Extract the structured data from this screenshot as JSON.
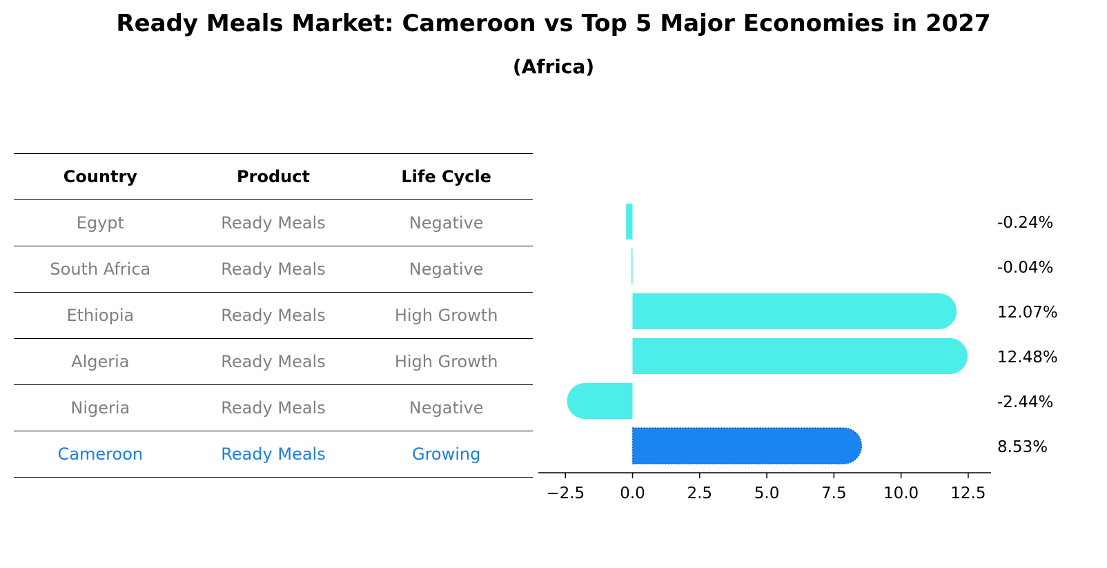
{
  "title": "Ready Meals Market: Cameroon vs Top 5 Major Economies in 2027",
  "subtitle": "(Africa)",
  "table": {
    "headers": [
      "Country",
      "Product",
      "Life Cycle"
    ],
    "rows": [
      {
        "country": "Egypt",
        "product": "Ready Meals",
        "life_cycle": "Negative"
      },
      {
        "country": "South Africa",
        "product": "Ready Meals",
        "life_cycle": "Negative"
      },
      {
        "country": "Ethiopia",
        "product": "Ready Meals",
        "life_cycle": "High Growth"
      },
      {
        "country": "Algeria",
        "product": "Ready Meals",
        "life_cycle": "High Growth"
      },
      {
        "country": "Nigeria",
        "product": "Ready Meals",
        "life_cycle": "Negative"
      },
      {
        "country": "Cameroon",
        "product": "Ready Meals",
        "life_cycle": "Growing"
      }
    ]
  },
  "colors": {
    "bar": "#4deeea",
    "highlight_bar": "#1a85f0",
    "highlight_text": "#1a7fe0",
    "row_text": "#808080"
  },
  "chart_data": {
    "type": "bar",
    "orientation": "horizontal",
    "categories": [
      "Egypt",
      "South Africa",
      "Ethiopia",
      "Algeria",
      "Nigeria",
      "Cameroon"
    ],
    "values": [
      -0.24,
      -0.04,
      12.07,
      12.48,
      -2.44,
      8.53
    ],
    "value_labels": [
      "-0.24%",
      "-0.04%",
      "12.07%",
      "12.48%",
      "-2.44%",
      "8.53%"
    ],
    "highlight": "Cameroon",
    "xlim": [
      -3.2,
      13.3
    ],
    "xticks": [
      -2.5,
      0.0,
      2.5,
      5.0,
      7.5,
      10.0,
      12.5
    ],
    "xtick_labels": [
      "−2.5",
      "0.0",
      "2.5",
      "5.0",
      "7.5",
      "10.0",
      "12.5"
    ],
    "xlabel": "",
    "ylabel": "",
    "grid": false
  }
}
